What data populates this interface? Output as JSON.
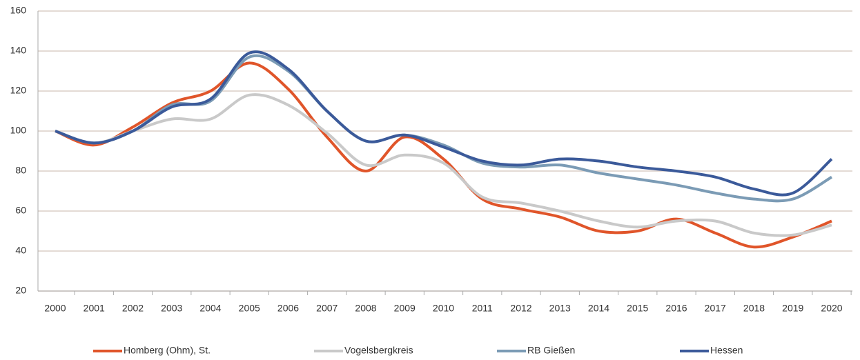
{
  "chart_data": {
    "type": "line",
    "categories": [
      "2000",
      "2001",
      "2002",
      "2003",
      "2004",
      "2005",
      "2006",
      "2007",
      "2008",
      "2009",
      "2010",
      "2011",
      "2012",
      "2013",
      "2014",
      "2015",
      "2016",
      "2017",
      "2018",
      "2019",
      "2020"
    ],
    "series": [
      {
        "name": "Homberg (Ohm), St.",
        "color": "#e0552a",
        "values": [
          100,
          93,
          102,
          114,
          120,
          134,
          121,
          97,
          80,
          97,
          86,
          66,
          61,
          57,
          50,
          50,
          56,
          49,
          42,
          47,
          55
        ]
      },
      {
        "name": "Vogelsbergkreis",
        "color": "#c9c9c9",
        "values": [
          100,
          94,
          100,
          106,
          106,
          118,
          113,
          99,
          83,
          88,
          84,
          67,
          64,
          60,
          55,
          52,
          55,
          55,
          49,
          48,
          53
        ]
      },
      {
        "name": "RB Gießen",
        "color": "#7b9bb5",
        "values": [
          100,
          94,
          100,
          113,
          115,
          137,
          130,
          110,
          95,
          98,
          93,
          84,
          82,
          83,
          79,
          76,
          73,
          69,
          66,
          66,
          77
        ]
      },
      {
        "name": "Hessen",
        "color": "#3b5a9a",
        "values": [
          100,
          94,
          100,
          112,
          116,
          139,
          131,
          110,
          95,
          98,
          92,
          85,
          83,
          86,
          85,
          82,
          80,
          77,
          71,
          69,
          86
        ]
      }
    ],
    "ylim": [
      20,
      160
    ],
    "yticks": [
      20,
      40,
      60,
      80,
      100,
      120,
      140,
      160
    ],
    "grid": true,
    "legend": "bottom"
  }
}
